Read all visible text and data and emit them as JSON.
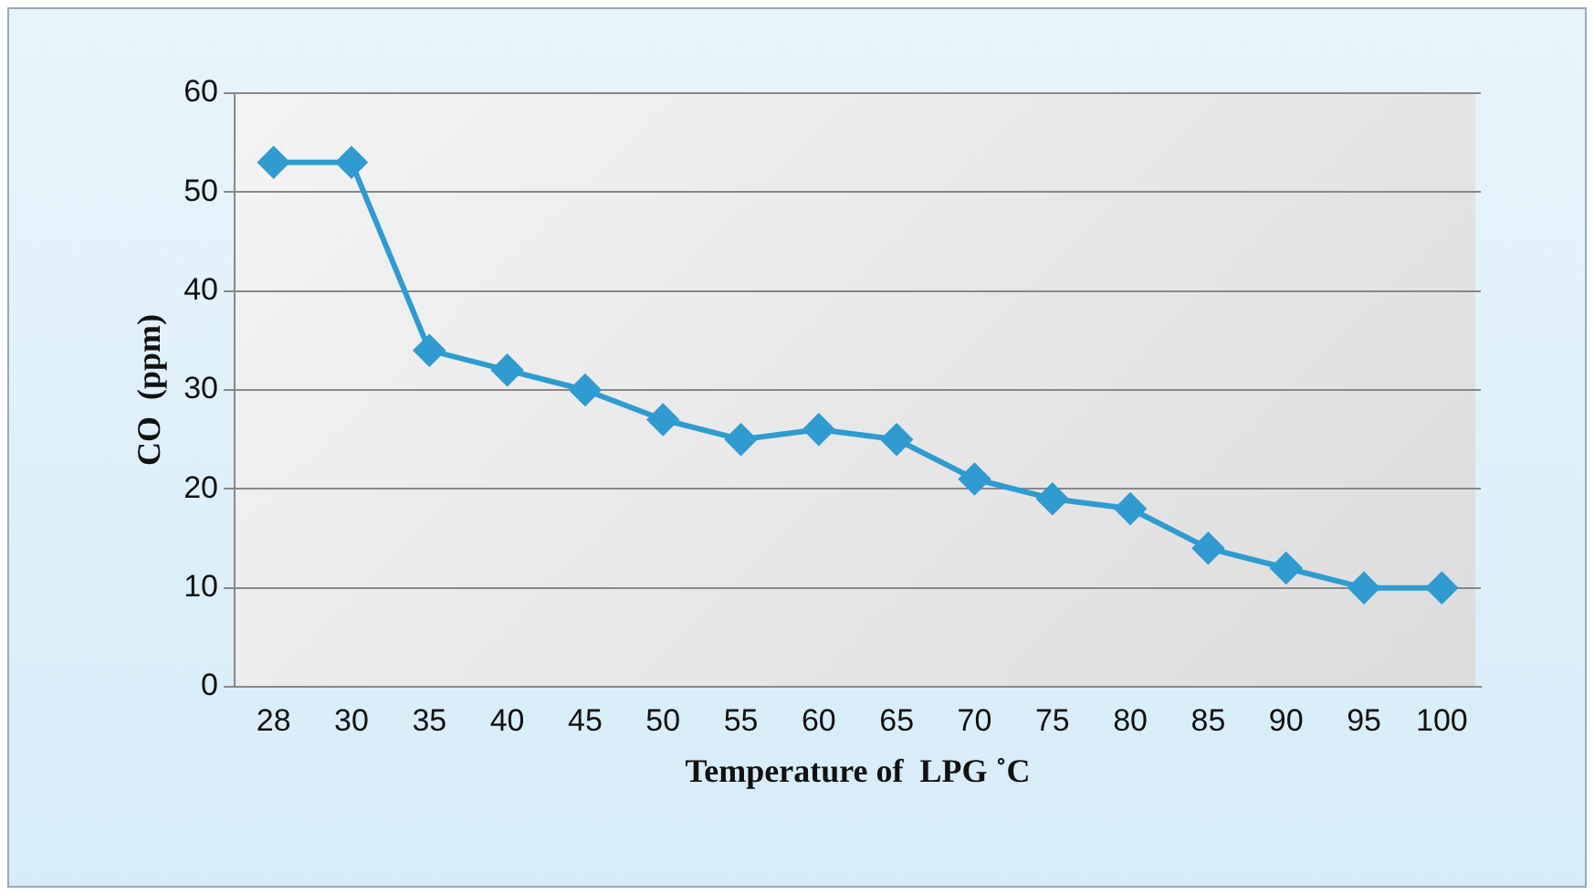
{
  "chart_data": {
    "type": "line",
    "xlabel": "Temperature of  LPG ˚C",
    "ylabel": "CO  (ppm)",
    "categories": [
      "28",
      "30",
      "35",
      "40",
      "45",
      "50",
      "55",
      "60",
      "65",
      "70",
      "75",
      "80",
      "85",
      "90",
      "95",
      "100"
    ],
    "series": [
      {
        "color": "#2f9bd0",
        "values": [
          53,
          53,
          34,
          32,
          30,
          27,
          25,
          26,
          25,
          21,
          19,
          18,
          14,
          12,
          10,
          10
        ]
      }
    ],
    "ylim": [
      0,
      60
    ],
    "yticks": [
      0,
      10,
      20,
      30,
      40,
      50,
      60
    ],
    "grid": "y",
    "marker": "diamond",
    "line_style": "solid",
    "legend": false
  }
}
